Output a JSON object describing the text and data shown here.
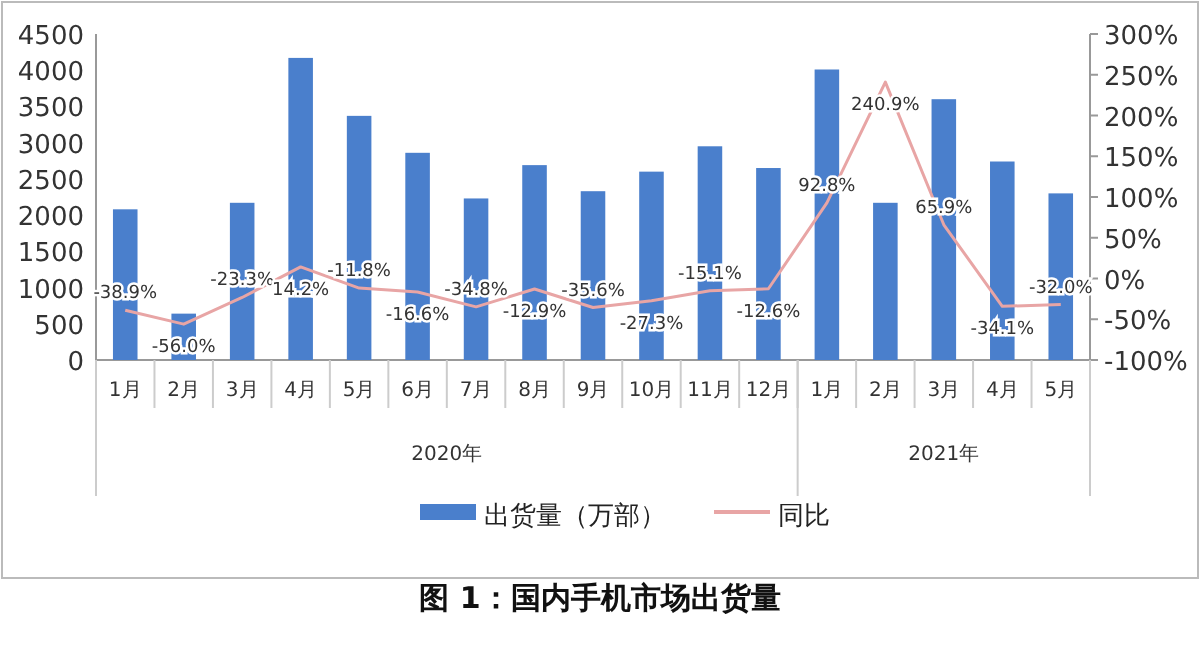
{
  "chart_data": {
    "type": "bar",
    "title": "图 1：国内手机市场出货量",
    "categories": [
      "1月",
      "2月",
      "3月",
      "4月",
      "5月",
      "6月",
      "7月",
      "8月",
      "9月",
      "10月",
      "11月",
      "12月",
      "1月",
      "2月",
      "3月",
      "4月",
      "5月"
    ],
    "annotations": [
      "2020年",
      "2021年"
    ],
    "series": [
      {
        "name": "出货量（万部）",
        "color": "#4a7fcc",
        "values": [
          2080,
          640,
          2170,
          4170,
          3370,
          2860,
          2230,
          2690,
          2330,
          2600,
          2950,
          2650,
          4010,
          2170,
          3600,
          2740,
          2300
        ]
      },
      {
        "name": "同比",
        "type": "line",
        "axis": "y2",
        "color": "#e8a5a5",
        "values": [
          -38.9,
          -56.0,
          -23.3,
          14.2,
          -11.8,
          -16.6,
          -34.8,
          -12.9,
          -35.6,
          -27.3,
          -15.1,
          -12.6,
          92.8,
          240.9,
          65.9,
          -34.1,
          -32.0
        ],
        "value_labels": [
          "-38.9%",
          "-56.0%",
          "-23.3%",
          "14.2%",
          "-11.8%",
          "-16.6%",
          "-34.8%",
          "-12.9%",
          "-35.6%",
          "-27.3%",
          "-15.1%",
          "-12.6%",
          "92.8%",
          "240.9%",
          "65.9%",
          "-34.1%",
          "-32.0%"
        ]
      }
    ],
    "ylim": [
      0,
      4500
    ],
    "yticks": [
      0,
      500,
      1000,
      1500,
      2000,
      2500,
      3000,
      3500,
      4000,
      4500
    ],
    "y2lim": [
      -100,
      300
    ],
    "y2ticks": [
      {
        "value": -100,
        "label": "-100%"
      },
      {
        "value": -50,
        "label": "-50%"
      },
      {
        "value": 0,
        "label": "0%"
      },
      {
        "value": 50,
        "label": "50%"
      },
      {
        "value": 100,
        "label": "100%"
      },
      {
        "value": 150,
        "label": "150%"
      },
      {
        "value": 200,
        "label": "200%"
      },
      {
        "value": 250,
        "label": "250%"
      },
      {
        "value": 300,
        "label": "300%"
      }
    ],
    "legend": "bottom",
    "grid": false
  }
}
